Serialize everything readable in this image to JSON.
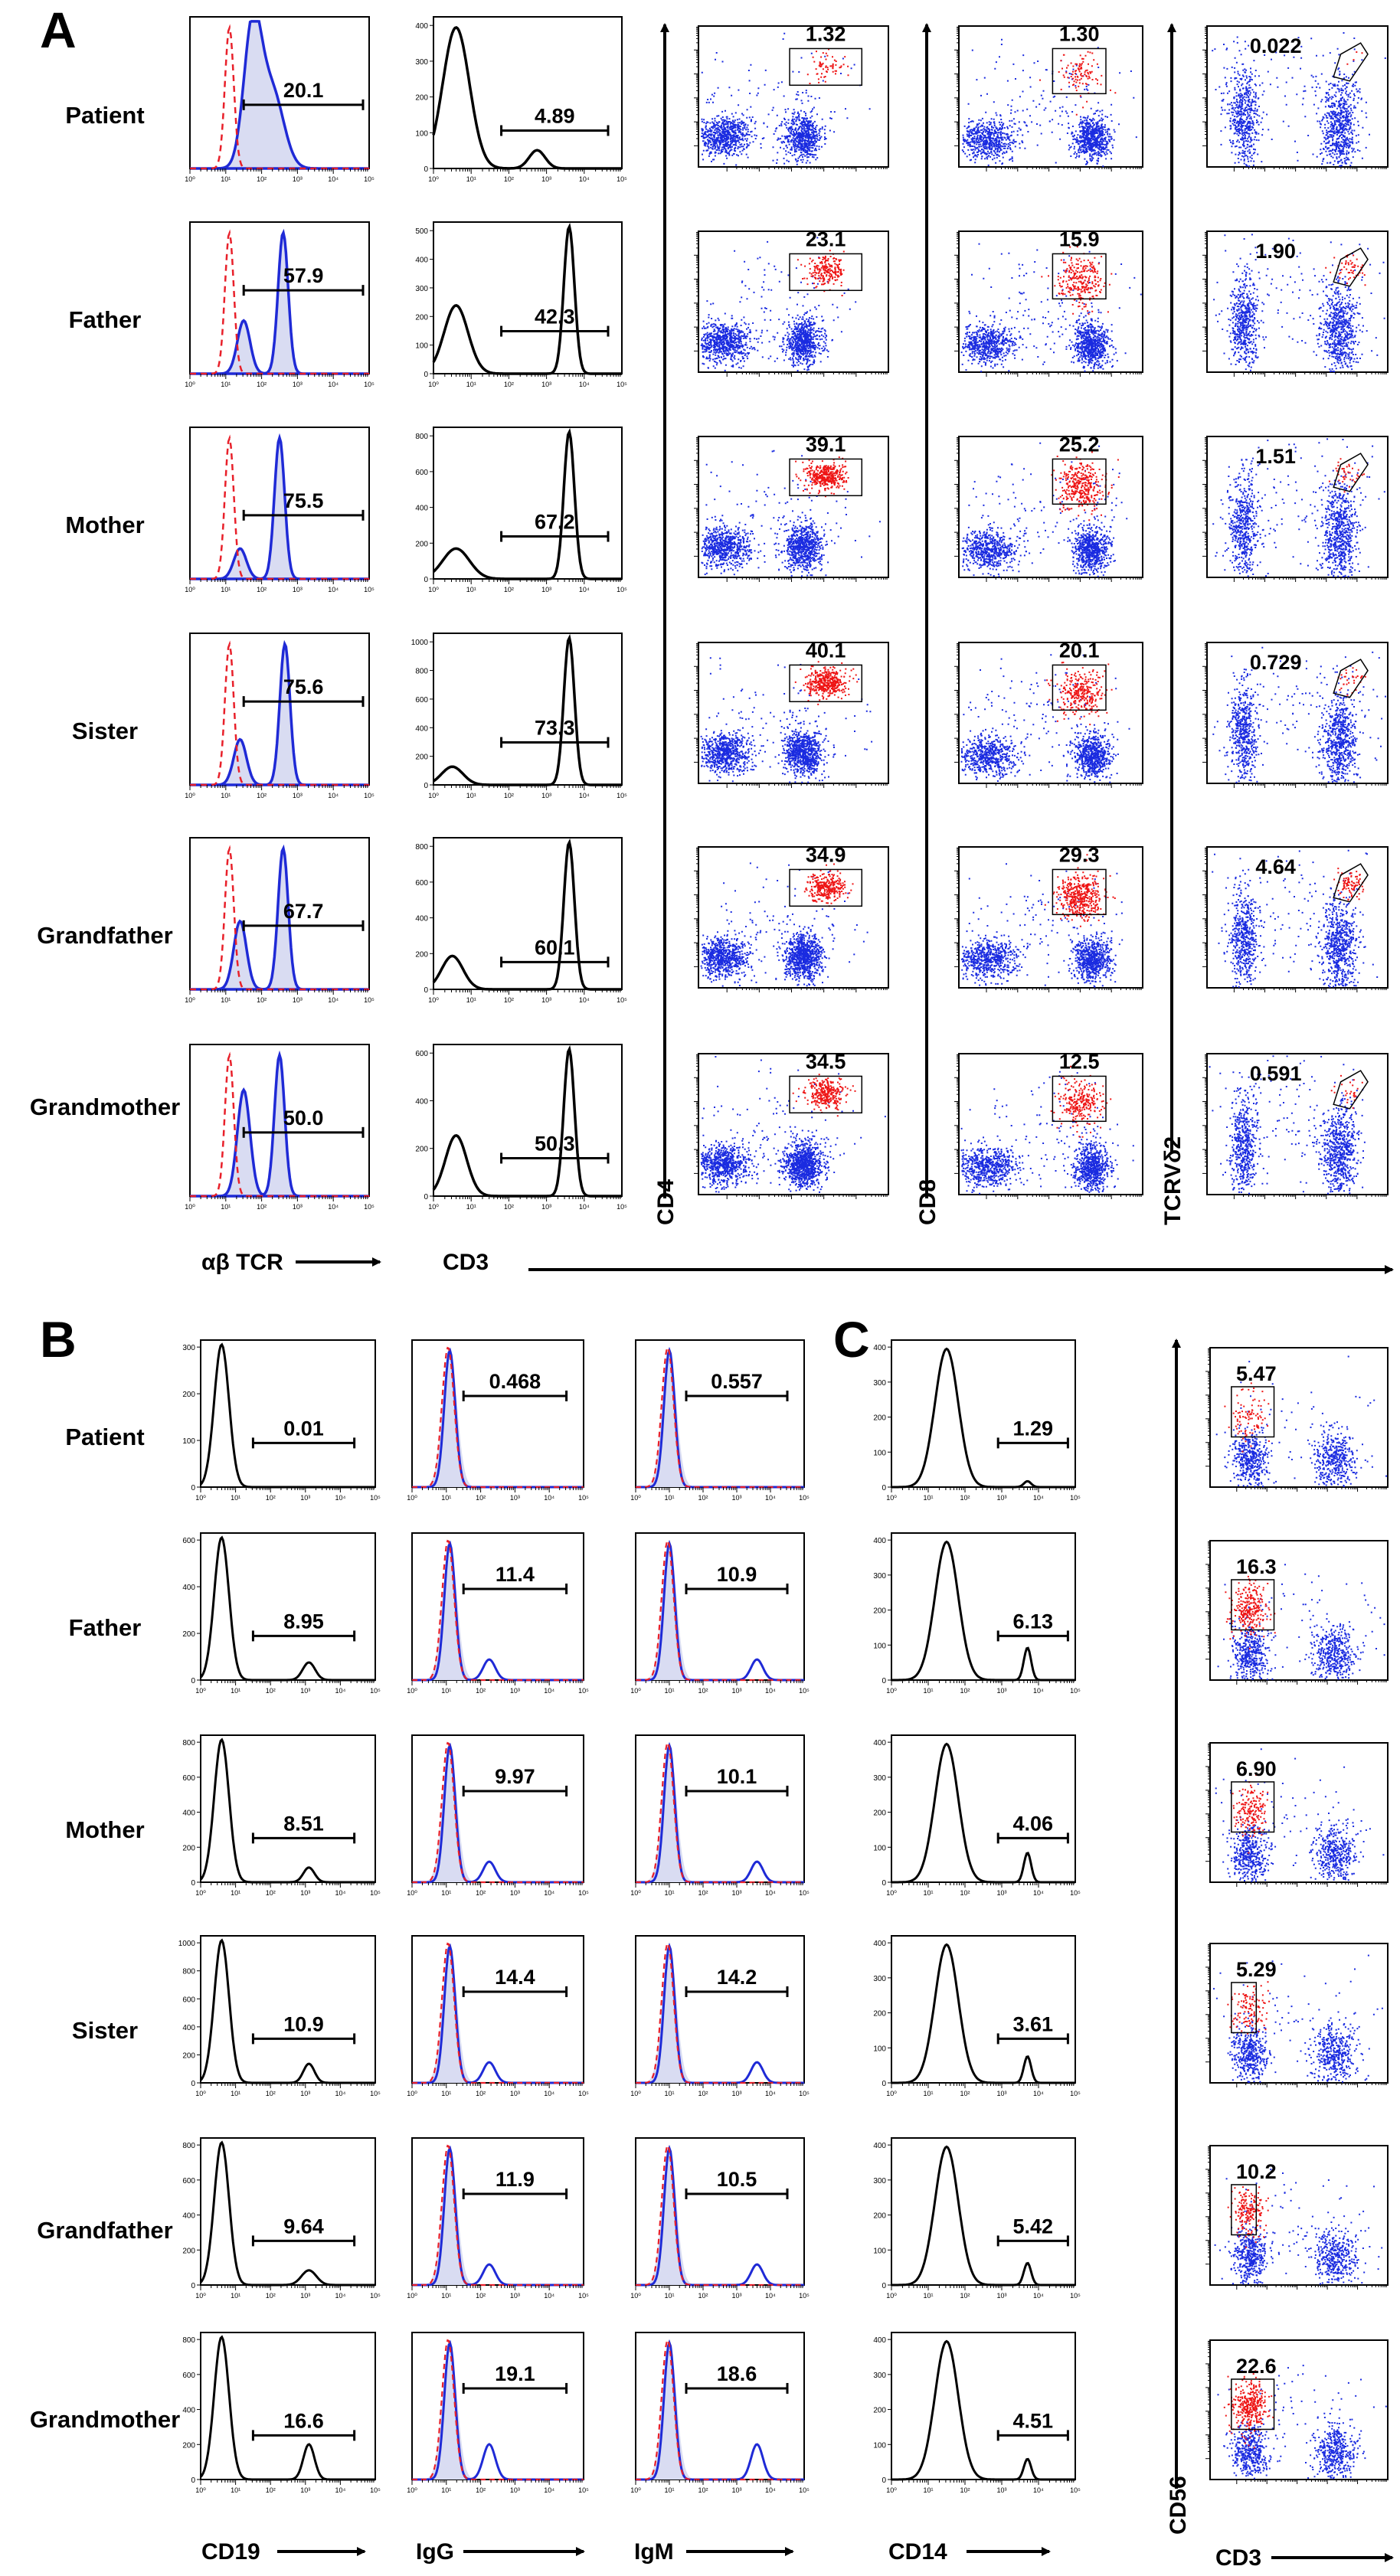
{
  "panel_labels": {
    "A": "A",
    "B": "B",
    "C": "C"
  },
  "subjects": [
    "Patient",
    "Father",
    "Mother",
    "Sister",
    "Grandfather",
    "Grandmother"
  ],
  "axis_labels": {
    "ab_tcr": "αβ TCR",
    "cd3": "CD3",
    "cd4": "CD4",
    "cd8": "CD8",
    "tcrvd2": "TCRVδ2",
    "cd19": "CD19",
    "igg": "IgG",
    "igm": "IgM",
    "cd14": "CD14",
    "cd56": "CD56",
    "cd3_c": "CD3"
  },
  "colors": {
    "isotype": "#e8202a",
    "stain": "#1f2ad6",
    "fill": "#d9dcf2",
    "black": "#000000",
    "dot_blue": "#1a2be0",
    "dot_red": "#ee1515"
  },
  "chart_data": [
    {
      "id": "A_abTCR",
      "type": "histogram",
      "title": "αβ TCR",
      "xlabel": "αβ TCR",
      "x_scale": "log",
      "x_range": [
        1,
        100000
      ],
      "gate_percent": [
        "20.1",
        "57.9",
        "75.5",
        "75.6",
        "67.7",
        "50.0"
      ],
      "overlay": "isotype control (red dashed) vs stain (blue filled)"
    },
    {
      "id": "A_CD3",
      "type": "histogram",
      "title": "CD3",
      "xlabel": "CD3",
      "x_scale": "log",
      "x_range": [
        1,
        100000
      ],
      "ymax": [
        400,
        500,
        800,
        1000,
        800,
        600
      ],
      "yticks": [
        [
          0,
          100,
          200,
          300,
          400
        ],
        [
          0,
          100,
          200,
          300,
          400,
          500
        ],
        [
          0,
          200,
          400,
          600,
          800
        ],
        [
          0,
          200,
          400,
          600,
          800,
          1000
        ],
        [
          0,
          200,
          400,
          600,
          800
        ],
        [
          0,
          200,
          400,
          600
        ]
      ],
      "gate_percent": [
        "4.89",
        "42.3",
        "67.2",
        "73.3",
        "60.1",
        "50.3"
      ]
    },
    {
      "id": "A_CD4",
      "type": "scatter",
      "xlabel": "CD3",
      "ylabel": "CD4",
      "gate_percent": [
        "1.32",
        "23.1",
        "39.1",
        "40.1",
        "34.9",
        "34.5"
      ]
    },
    {
      "id": "A_CD8",
      "type": "scatter",
      "xlabel": "CD3",
      "ylabel": "CD8",
      "gate_percent": [
        "1.30",
        "15.9",
        "25.2",
        "20.1",
        "29.3",
        "12.5"
      ]
    },
    {
      "id": "A_TCRVd2",
      "type": "scatter",
      "xlabel": "CD3",
      "ylabel": "TCRVδ2",
      "gate_percent": [
        "0.022",
        "1.90",
        "1.51",
        "0.729",
        "4.64",
        "0.591"
      ]
    },
    {
      "id": "B_CD19",
      "type": "histogram",
      "xlabel": "CD19",
      "x_scale": "log",
      "ymax": [
        300,
        600,
        800,
        1000,
        800,
        800
      ],
      "yticks": [
        [
          0,
          100,
          200,
          300
        ],
        [
          0,
          200,
          400,
          600
        ],
        [
          0,
          200,
          400,
          600,
          800
        ],
        [
          0,
          200,
          400,
          600,
          800,
          1000
        ],
        [
          0,
          200,
          400,
          600,
          800
        ],
        [
          0,
          200,
          400,
          600,
          800
        ]
      ],
      "gate_percent": [
        "0.01",
        "8.95",
        "8.51",
        "10.9",
        "9.64",
        "16.6"
      ]
    },
    {
      "id": "B_IgG",
      "type": "histogram",
      "xlabel": "IgG",
      "x_scale": "log",
      "gate_percent": [
        "0.468",
        "11.4",
        "9.97",
        "14.4",
        "11.9",
        "19.1"
      ]
    },
    {
      "id": "B_IgM",
      "type": "histogram",
      "xlabel": "IgM",
      "x_scale": "log",
      "gate_percent": [
        "0.557",
        "10.9",
        "10.1",
        "14.2",
        "10.5",
        "18.6"
      ]
    },
    {
      "id": "C_CD14",
      "type": "histogram",
      "xlabel": "CD14",
      "x_scale": "log",
      "ymax": [
        400,
        400,
        400,
        400,
        400,
        400
      ],
      "yticks": [
        [
          0,
          100,
          200,
          300,
          400
        ],
        [
          0,
          100,
          200,
          300,
          400
        ],
        [
          0,
          100,
          200,
          300,
          400
        ],
        [
          0,
          100,
          200,
          300,
          400
        ],
        [
          0,
          100,
          200,
          300,
          400
        ],
        [
          0,
          100,
          200,
          300,
          400
        ]
      ],
      "gate_percent": [
        "1.29",
        "6.13",
        "4.06",
        "3.61",
        "5.42",
        "4.51"
      ]
    },
    {
      "id": "C_CD56",
      "type": "scatter",
      "xlabel": "CD3",
      "ylabel": "CD56",
      "gate_percent": [
        "5.47",
        "16.3",
        "6.90",
        "5.29",
        "10.2",
        "22.6"
      ]
    }
  ]
}
